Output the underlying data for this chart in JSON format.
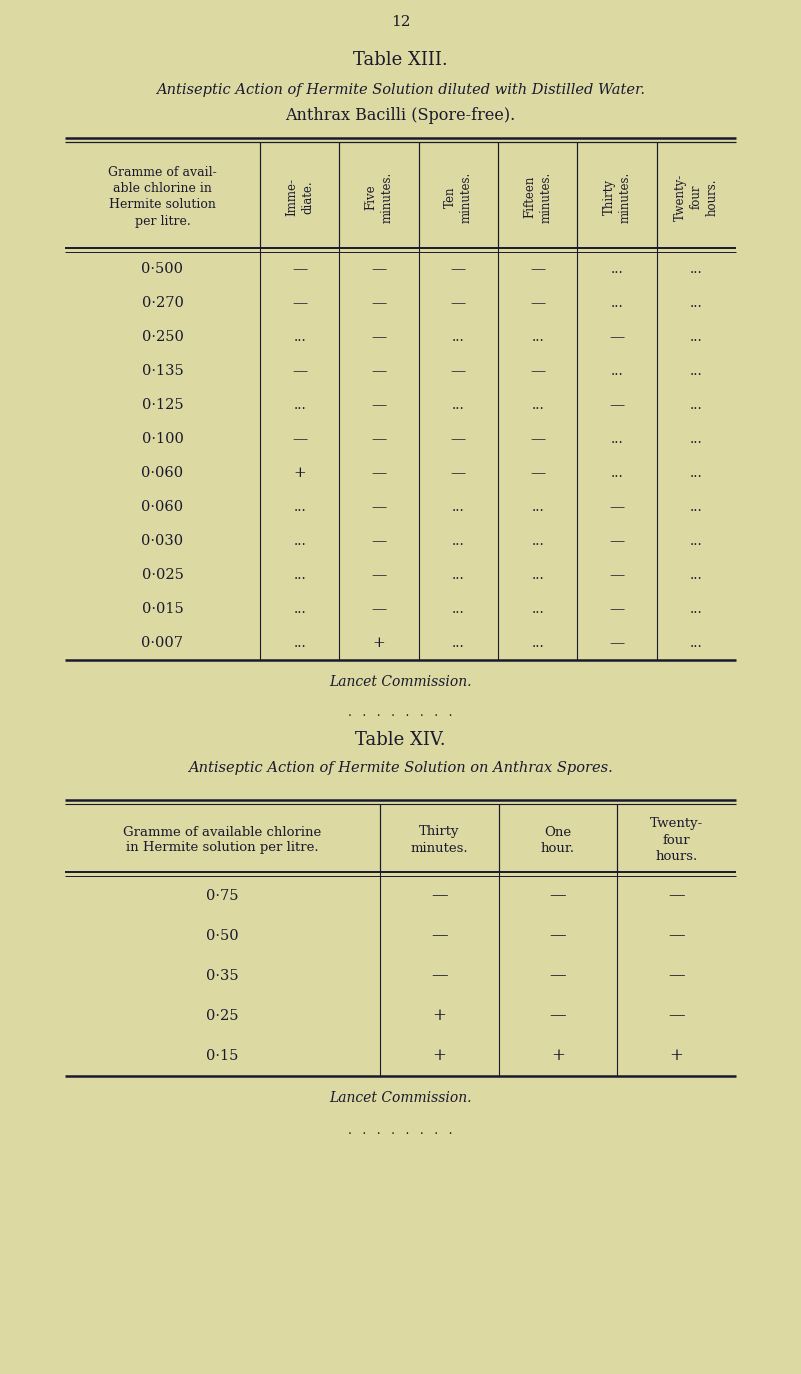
{
  "bg_color": "#ddd9a3",
  "page_number": "12",
  "table13": {
    "title_line1": "Table XIII.",
    "title_line2": "Antiseptic Action of Hermite Solution diluted with Distilled Water.",
    "title_line3": "Anthrax Bacilli (Spore-free).",
    "col_headers": [
      "Gramme of avail-\nable chlorine in\nHermite solution\nper litre.",
      "Imme-\ndiate.",
      "Five\nminutes.",
      "Ten\nminutes.",
      "Fifteen\nminutes.",
      "Thirty\nminutes.",
      "Twenty-\nfour\nhours."
    ],
    "rows": [
      [
        "0·500",
        "—",
        "—",
        "—",
        "—",
        "...",
        "..."
      ],
      [
        "0·270",
        "—",
        "—",
        "—",
        "—",
        "...",
        "..."
      ],
      [
        "0·250",
        "...",
        "—",
        "...",
        "...",
        "—",
        "..."
      ],
      [
        "0·135",
        "—",
        "—",
        "—",
        "—",
        "...",
        "..."
      ],
      [
        "0·125",
        "...",
        "—",
        "...",
        "...",
        "—",
        "..."
      ],
      [
        "0·100",
        "—",
        "—",
        "—",
        "—",
        "...",
        "..."
      ],
      [
        "0·060",
        "+",
        "—",
        "—",
        "—",
        "...",
        "..."
      ],
      [
        "0·060",
        "...",
        "—",
        "...",
        "...",
        "—",
        "..."
      ],
      [
        "0·030",
        "...",
        "—",
        "...",
        "...",
        "—",
        "..."
      ],
      [
        "0·025",
        "...",
        "—",
        "...",
        "...",
        "—",
        "..."
      ],
      [
        "0·015",
        "...",
        "—",
        "...",
        "...",
        "—",
        "..."
      ],
      [
        "0·007",
        "...",
        "+",
        "...",
        "...",
        "—",
        "..."
      ]
    ],
    "attribution": "Lancet Commission."
  },
  "separator_dots": ".  .  .  .  .  .  .  .",
  "table14": {
    "title_line1": "Table XIV.",
    "title_line2": "Antiseptic Action of Hermite Solution on Anthrax Spores.",
    "col_headers": [
      "Gramme of available chlorine\nin Hermite solution per litre.",
      "Thirty\nminutes.",
      "One\nhour.",
      "Twenty-\nfour\nhours."
    ],
    "rows": [
      [
        "0·75",
        "—",
        "—",
        "—"
      ],
      [
        "0·50",
        "—",
        "—",
        "—"
      ],
      [
        "0·35",
        "—",
        "—",
        "—"
      ],
      [
        "0·25",
        "+",
        "—",
        "—"
      ],
      [
        "0·15",
        "+",
        "+",
        "+"
      ]
    ],
    "attribution": "Lancet Commission."
  },
  "bottom_dots": ".  .  .  .  .  .  .  .",
  "text_color": "#1a1a2e",
  "line_color": "#1a1a2e"
}
